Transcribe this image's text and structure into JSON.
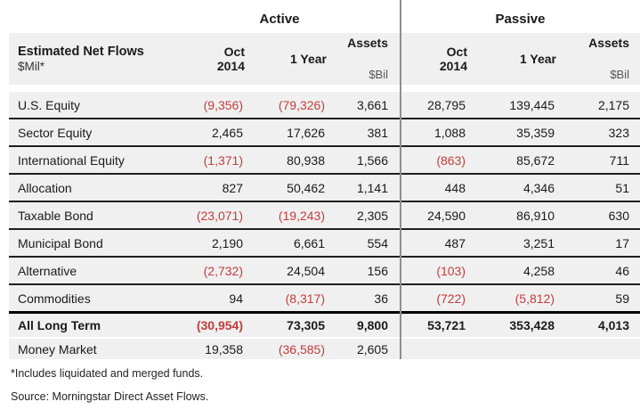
{
  "table": {
    "active_label": "Active",
    "passive_label": "Passive",
    "row_header": {
      "title": "Estimated Net Flows",
      "unit": "$Mil*"
    },
    "columns": {
      "oct_line1": "Oct",
      "oct_line2": "2014",
      "one_year": "1 Year",
      "assets": "Assets",
      "assets_unit": "$Bil"
    },
    "rows": [
      {
        "label": "U.S. Equity",
        "a_oct": "(9,356)",
        "a_1yr": "(79,326)",
        "a_assets": "3,661",
        "p_oct": "28,795",
        "p_1yr": "139,445",
        "p_assets": "2,175"
      },
      {
        "label": "Sector Equity",
        "a_oct": "2,465",
        "a_1yr": "17,626",
        "a_assets": "381",
        "p_oct": "1,088",
        "p_1yr": "35,359",
        "p_assets": "323"
      },
      {
        "label": "International Equity",
        "a_oct": "(1,371)",
        "a_1yr": "80,938",
        "a_assets": "1,566",
        "p_oct": "(863)",
        "p_1yr": "85,672",
        "p_assets": "711"
      },
      {
        "label": "Allocation",
        "a_oct": "827",
        "a_1yr": "50,462",
        "a_assets": "1,141",
        "p_oct": "448",
        "p_1yr": "4,346",
        "p_assets": "51"
      },
      {
        "label": "Taxable Bond",
        "a_oct": "(23,071)",
        "a_1yr": "(19,243)",
        "a_assets": "2,305",
        "p_oct": "24,590",
        "p_1yr": "86,910",
        "p_assets": "630"
      },
      {
        "label": "Municipal Bond",
        "a_oct": "2,190",
        "a_1yr": "6,661",
        "a_assets": "554",
        "p_oct": "487",
        "p_1yr": "3,251",
        "p_assets": "17"
      },
      {
        "label": "Alternative",
        "a_oct": "(2,732)",
        "a_1yr": "24,504",
        "a_assets": "156",
        "p_oct": "(103)",
        "p_1yr": "4,258",
        "p_assets": "46"
      },
      {
        "label": "Commodities",
        "a_oct": "94",
        "a_1yr": "(8,317)",
        "a_assets": "36",
        "p_oct": "(722)",
        "p_1yr": "(5,812)",
        "p_assets": "59"
      },
      {
        "label": "All Long Term",
        "a_oct": "(30,954)",
        "a_1yr": "73,305",
        "a_assets": "9,800",
        "p_oct": "53,721",
        "p_1yr": "353,428",
        "p_assets": "4,013"
      },
      {
        "label": "Money Market",
        "a_oct": "19,358",
        "a_1yr": "(36,585)",
        "a_assets": "2,605",
        "p_oct": "",
        "p_1yr": "",
        "p_assets": ""
      }
    ],
    "footnotes": [
      "*Includes liquidated and merged funds.",
      "Source: Morningstar Direct Asset Flows."
    ],
    "colors": {
      "negative": "#c43c3c",
      "row_background": "#f0f0f0",
      "divider": "#8f8f8f"
    }
  }
}
